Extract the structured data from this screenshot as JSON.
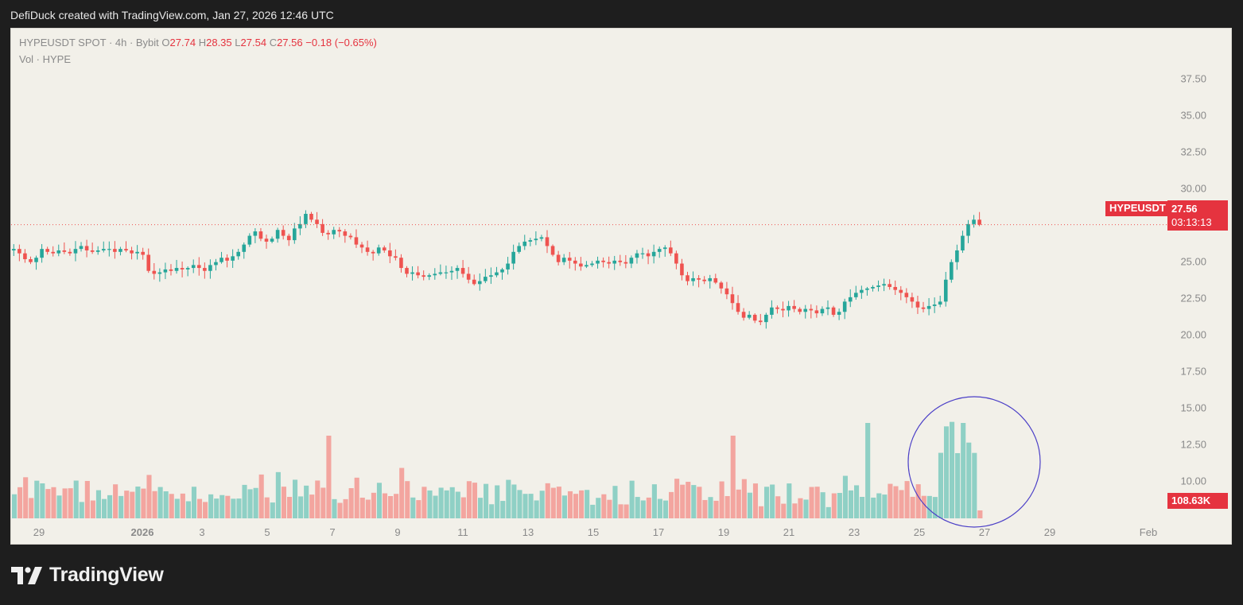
{
  "header": {
    "attribution": "DefiDuck created with TradingView.com, Jan 27, 2026 12:46 UTC"
  },
  "legend": {
    "symbol": "HYPEUSDT SPOT · 4h · Bybit",
    "open_label": "O",
    "open": "27.74",
    "high_label": "H",
    "high": "28.35",
    "low_label": "L",
    "low": "27.54",
    "close_label": "C",
    "close": "27.56",
    "change": "−0.18 (−0.65%)",
    "volume_label": "Vol · HYPE"
  },
  "tags": {
    "symbol": "HYPEUSDT",
    "price": "27.56",
    "countdown": "03:13:13",
    "volume": "108.63K"
  },
  "footer": {
    "brand": "TradingView"
  },
  "colors": {
    "up": "#26a69a",
    "down": "#ef5350",
    "vol_up": "#8fd0c5",
    "vol_down": "#f3a59f",
    "price_line": "#ef5350",
    "circle": "#4b3fc7",
    "background": "#f2f0e9"
  },
  "chart_data": {
    "type": "candlestick",
    "symbol": "HYPEUSDT",
    "interval": "4h",
    "y_ticks": [
      "37.50",
      "35.00",
      "32.50",
      "30.00",
      "27.50",
      "25.00",
      "22.50",
      "20.00",
      "17.50",
      "15.00",
      "12.50",
      "10.00"
    ],
    "x_ticks": [
      "29",
      "2026",
      "3",
      "5",
      "7",
      "9",
      "11",
      "13",
      "15",
      "17",
      "19",
      "21",
      "23",
      "25",
      "27",
      "29",
      "Feb"
    ],
    "ylim": [
      9.0,
      38.5
    ],
    "last_price": 27.56,
    "annotation": "circle around elevated volume Jan 25–27",
    "ohlc_close": [
      25.9,
      25.6,
      25.2,
      25.0,
      25.3,
      25.9,
      25.7,
      25.6,
      25.8,
      25.7,
      25.6,
      25.9,
      26.1,
      25.8,
      25.7,
      25.8,
      25.9,
      25.9,
      25.7,
      25.9,
      25.8,
      25.6,
      25.7,
      25.5,
      24.4,
      24.2,
      24.3,
      24.5,
      24.4,
      24.6,
      24.5,
      24.6,
      24.8,
      24.6,
      24.4,
      24.8,
      25.0,
      25.3,
      25.1,
      25.4,
      25.7,
      26.2,
      26.8,
      27.1,
      26.6,
      26.4,
      26.6,
      27.2,
      26.8,
      26.5,
      27.3,
      27.6,
      28.3,
      27.9,
      27.6,
      27.0,
      26.9,
      27.2,
      27.1,
      26.8,
      26.7,
      26.2,
      26.0,
      25.7,
      25.6,
      26.0,
      25.8,
      25.4,
      25.3,
      24.6,
      24.2,
      24.3,
      24.1,
      24.0,
      24.1,
      24.2,
      24.3,
      24.3,
      24.4,
      24.6,
      24.2,
      23.8,
      23.5,
      23.7,
      24.0,
      24.1,
      24.3,
      24.5,
      24.9,
      25.7,
      26.1,
      26.4,
      26.5,
      26.6,
      26.7,
      26.1,
      25.5,
      25.0,
      25.3,
      25.1,
      24.9,
      24.7,
      24.8,
      24.9,
      25.1,
      25.0,
      24.9,
      25.1,
      25.0,
      24.9,
      25.3,
      25.6,
      25.6,
      25.4,
      25.7,
      25.9,
      26.0,
      25.6,
      24.9,
      24.1,
      23.7,
      23.9,
      23.8,
      23.7,
      23.9,
      23.6,
      23.2,
      22.8,
      22.2,
      21.6,
      21.2,
      21.4,
      21.0,
      20.9,
      21.4,
      21.9,
      21.8,
      21.7,
      22.0,
      21.8,
      21.6,
      21.8,
      21.7,
      21.5,
      21.8,
      21.9,
      21.4,
      21.6,
      22.3,
      22.6,
      22.9,
      23.1,
      23.2,
      23.3,
      23.4,
      23.5,
      23.3,
      23.1,
      22.9,
      22.6,
      22.3,
      21.9,
      21.8,
      22.0,
      22.1,
      22.3,
      23.8,
      25.0,
      25.8,
      26.8,
      27.6,
      27.9,
      27.56
    ]
  }
}
